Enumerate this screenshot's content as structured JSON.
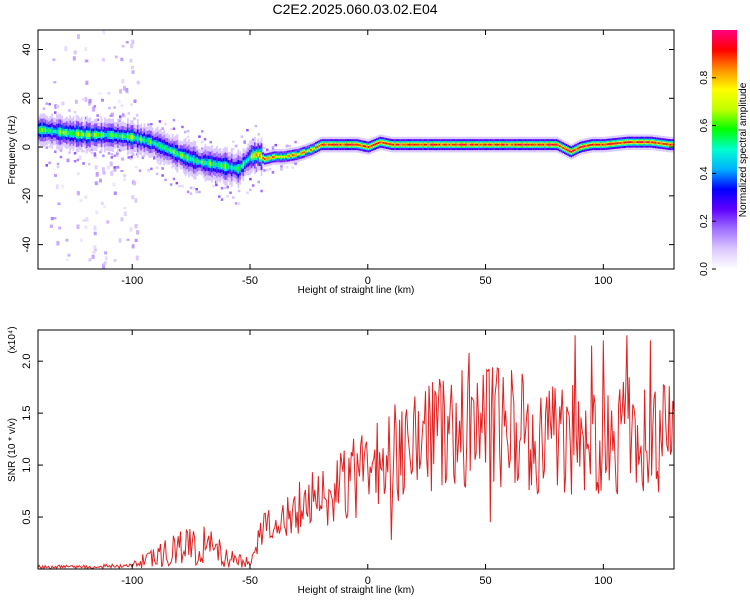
{
  "title": "C2E2.2025.060.03.02.E04",
  "chart_data": [
    {
      "type": "heatmap",
      "xlabel": "Height of straight line (km)",
      "ylabel": "Frequency (Hz)",
      "xlim": [
        -140,
        130
      ],
      "ylim": [
        -50,
        48
      ],
      "x_ticks": [
        -100,
        -50,
        0,
        50,
        100
      ],
      "y_ticks": [
        -40,
        -20,
        0,
        20,
        40
      ],
      "ridge": {
        "x": [
          -138,
          -130,
          -120,
          -110,
          -100,
          -92,
          -85,
          -78,
          -72,
          -66,
          -60,
          -55,
          -50,
          -47,
          -44,
          -40,
          -36,
          -30,
          -24,
          -20,
          -15,
          -10,
          -5,
          0,
          5,
          10,
          20,
          30,
          40,
          50,
          60,
          70,
          75,
          80,
          84,
          86,
          90,
          95,
          100,
          110,
          115,
          120,
          128
        ],
        "y": [
          7,
          6,
          5,
          5,
          4,
          2,
          -1,
          -4,
          -6,
          -7,
          -8,
          -9,
          -4,
          -3,
          -5,
          -4,
          -4,
          -3,
          -1,
          1,
          1,
          1,
          1,
          0,
          2,
          1,
          1,
          1,
          1,
          1,
          1,
          1,
          1,
          1,
          -1,
          -2,
          0,
          1,
          1,
          2,
          2,
          2,
          1
        ]
      },
      "colorbar": {
        "label": "Normalized spectral amplitude",
        "range": [
          0.0,
          1.0
        ],
        "ticks": [
          "0.0",
          "0.2",
          "0.4",
          "0.6",
          "0.8"
        ],
        "colors": [
          "#ffffff",
          "#dcc8ff",
          "#a070ff",
          "#6000ff",
          "#0000ff",
          "#00b0ff",
          "#00ffd0",
          "#00ff00",
          "#c0ff00",
          "#ffff00",
          "#ff9000",
          "#ff0000",
          "#ff0080"
        ]
      }
    },
    {
      "type": "line",
      "xlabel": "Height of straight line (km)",
      "ylabel": "SNR (10 * v/v)",
      "y_multiplier": "(x10⁴)",
      "xlim": [
        -140,
        130
      ],
      "ylim": [
        0,
        2.3
      ],
      "x_ticks": [
        -100,
        -50,
        0,
        50,
        100
      ],
      "y_ticks": [
        "0.5",
        "1.0",
        "1.5",
        "2.0"
      ],
      "series": [
        {
          "color": "#e02020",
          "envelope": {
            "x": [
              -140,
              -120,
              -100,
              -95,
              -90,
              -85,
              -80,
              -75,
              -70,
              -65,
              -60,
              -55,
              -50,
              -45,
              -40,
              -35,
              -30,
              -25,
              -20,
              -15,
              -10,
              -5,
              0,
              3,
              5,
              10,
              15,
              20,
              25,
              30,
              35,
              40,
              45,
              50,
              55,
              60,
              65,
              70,
              75,
              80,
              85,
              90,
              95,
              100,
              105,
              110,
              115,
              120,
              125,
              130
            ],
            "y": [
              0.02,
              0.02,
              0.03,
              0.08,
              0.13,
              0.17,
              0.2,
              0.22,
              0.22,
              0.2,
              0.14,
              0.08,
              0.06,
              0.35,
              0.45,
              0.5,
              0.58,
              0.65,
              0.72,
              0.78,
              0.84,
              0.88,
              0.92,
              0.95,
              1.0,
              1.08,
              1.15,
              1.2,
              1.25,
              1.28,
              1.3,
              1.32,
              1.34,
              1.35,
              1.35,
              1.33,
              1.3,
              1.28,
              1.3,
              1.32,
              1.3,
              1.28,
              1.3,
              1.32,
              1.3,
              1.3,
              1.32,
              1.3,
              1.28,
              1.28
            ]
          },
          "peaks": [
            {
              "x": 52,
              "y": 2.3
            },
            {
              "x": 88,
              "y": 2.25
            },
            {
              "x": 110,
              "y": 2.25
            },
            {
              "x": 120,
              "y": 2.2
            },
            {
              "x": 95,
              "y": 2.15
            },
            {
              "x": 100,
              "y": 2.2
            },
            {
              "x": 43,
              "y": 2.08
            }
          ],
          "dips": [
            {
              "x": 10,
              "y": 0.28
            },
            {
              "x": 52,
              "y": 0.45
            },
            {
              "x": 27,
              "y": 0.75
            }
          ]
        }
      ]
    }
  ]
}
